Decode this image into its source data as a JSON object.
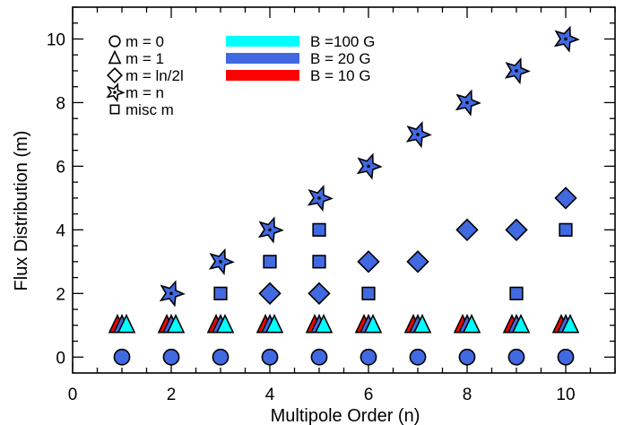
{
  "chart_data": {
    "type": "scatter",
    "title": "",
    "xlabel": "Multipole Order (n)",
    "ylabel": "Flux Distribution (m)",
    "xlim": [
      0,
      11
    ],
    "ylim": [
      -0.5,
      11
    ],
    "x_ticks": [
      0,
      2,
      4,
      6,
      8,
      10
    ],
    "x_tick_labels": [
      "0",
      "2",
      "4",
      "6",
      "8",
      "10"
    ],
    "y_ticks": [
      0,
      2,
      4,
      6,
      8,
      10
    ],
    "y_tick_labels": [
      "0",
      "2",
      "4",
      "6",
      "8",
      "10"
    ],
    "grid": false,
    "marker_legend": {
      "placement": "top-left",
      "entries": [
        {
          "symbol": "circle",
          "label": "m = 0"
        },
        {
          "symbol": "triangle",
          "label": "m = 1"
        },
        {
          "symbol": "diamond",
          "label": "m = ln/2l"
        },
        {
          "symbol": "star",
          "label": "m = n"
        },
        {
          "symbol": "square",
          "label": "misc m"
        }
      ]
    },
    "color_legend": {
      "placement": "top-center",
      "entries": [
        {
          "label": "B =100 G",
          "color": "#00FFFF"
        },
        {
          "label": "B =  20 G",
          "color": "#4169E1"
        },
        {
          "label": "B =  10 G",
          "color": "#FF0000"
        }
      ]
    },
    "series": [
      {
        "marker": "circle",
        "color": "#4169E1",
        "x": [
          1,
          2,
          3,
          4,
          5,
          6,
          7,
          8,
          9,
          10
        ],
        "y": [
          0,
          0,
          0,
          0,
          0,
          0,
          0,
          0,
          0,
          0
        ]
      },
      {
        "marker": "triangle",
        "color": "#FF0000",
        "x": [
          1,
          2,
          3,
          4,
          5,
          6,
          7,
          8,
          9,
          10
        ],
        "y": [
          1,
          1,
          1,
          1,
          1,
          1,
          1,
          1,
          1,
          1
        ]
      },
      {
        "marker": "triangle",
        "color": "#4169E1",
        "x": [
          1,
          2,
          3,
          4,
          5,
          6,
          7,
          8,
          9,
          10
        ],
        "y": [
          1,
          1,
          1,
          1,
          1,
          1,
          1,
          1,
          1,
          1
        ]
      },
      {
        "marker": "triangle",
        "color": "#00FFFF",
        "x": [
          1,
          2,
          3,
          4,
          5,
          6,
          7,
          8,
          9,
          10
        ],
        "y": [
          1,
          1,
          1,
          1,
          1,
          1,
          1,
          1,
          1,
          1
        ]
      },
      {
        "marker": "diamond",
        "color": "#4169E1",
        "x": [
          4,
          5,
          6,
          7,
          8,
          9,
          10
        ],
        "y": [
          2,
          2,
          3,
          3,
          4,
          4,
          5
        ]
      },
      {
        "marker": "star",
        "color": "#4169E1",
        "x": [
          2,
          3,
          4,
          5,
          6,
          7,
          8,
          9,
          10
        ],
        "y": [
          2,
          3,
          4,
          5,
          6,
          7,
          8,
          9,
          10
        ]
      },
      {
        "marker": "square",
        "color": "#4169E1",
        "x": [
          3,
          4,
          5,
          5,
          6,
          9,
          10
        ],
        "y": [
          2,
          3,
          3,
          4,
          2,
          2,
          4
        ]
      }
    ]
  }
}
